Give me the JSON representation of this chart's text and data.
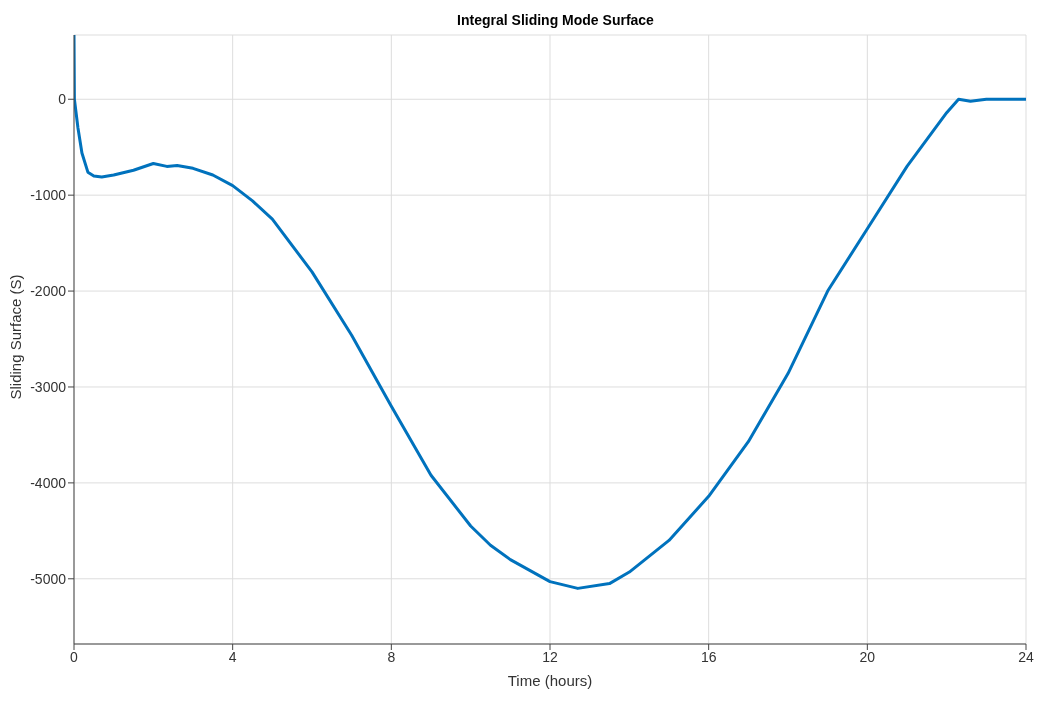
{
  "chart_data": {
    "type": "line",
    "title": "Integral Sliding Mode Surface",
    "xlabel": "Time (hours)",
    "ylabel": "Sliding Surface (S)",
    "x": [
      0,
      0.01,
      0.1,
      0.2,
      0.35,
      0.5,
      0.7,
      1,
      1.5,
      2,
      2.34,
      2.6,
      3,
      3.5,
      4,
      4.5,
      5,
      6,
      7,
      8,
      9,
      10,
      10.5,
      11,
      12,
      12.7,
      13.5,
      14,
      15,
      16,
      17,
      18,
      19,
      20,
      21,
      22,
      22.3,
      22.6,
      23,
      23.5,
      24
    ],
    "series": [
      {
        "color": "#0072bd",
        "values": [
          670,
          0,
          -300,
          -560,
          -760,
          -800,
          -810,
          -790,
          -740,
          -670,
          -700,
          -690,
          -720,
          -790,
          -900,
          -1060,
          -1250,
          -1800,
          -2460,
          -3200,
          -3920,
          -4450,
          -4650,
          -4800,
          -5030,
          -5100,
          -5050,
          -4930,
          -4600,
          -4140,
          -3570,
          -2860,
          -2000,
          -1350,
          -700,
          -140,
          0,
          -20,
          0,
          0,
          0
        ]
      }
    ],
    "xlim": [
      0,
      24
    ],
    "ylim": [
      -5680,
      670
    ],
    "xticks": [
      0,
      4,
      8,
      12,
      16,
      20,
      24
    ],
    "yticks": [
      -5000,
      -4000,
      -3000,
      -2000,
      -1000,
      0
    ],
    "grid": true,
    "marker": "none",
    "line_style": "solid"
  }
}
